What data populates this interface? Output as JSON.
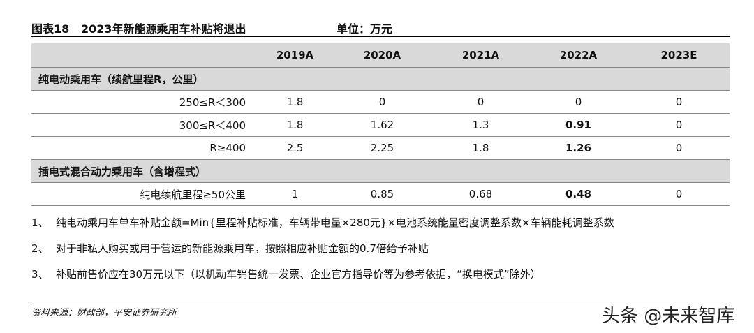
{
  "header": {
    "figure": "图表18",
    "title": "2023年新能源乘用车补贴将退出",
    "unit": "单位：万元"
  },
  "table": {
    "columns": [
      "2019A",
      "2020A",
      "2021A",
      "2022A",
      "2023E"
    ],
    "sections": [
      {
        "title": "纯电动乘用车（续航里程R，公里）",
        "rows": [
          {
            "label": "250≤R＜300",
            "values": [
              "1.8",
              "0",
              "0",
              "0",
              "0"
            ]
          },
          {
            "label": "300≤R＜400",
            "values": [
              "1.8",
              "1.62",
              "1.3",
              "0.91",
              "0"
            ]
          },
          {
            "label": "R≥400",
            "values": [
              "2.5",
              "2.25",
              "1.8",
              "1.26",
              "0"
            ]
          }
        ]
      },
      {
        "title": "插电式混合动力乘用车（含增程式）",
        "rows": [
          {
            "label": "纯电续航里程≥50公里",
            "values": [
              "1",
              "0.85",
              "0.68",
              "0.48",
              "0"
            ]
          }
        ]
      }
    ]
  },
  "notes": [
    {
      "num": "1、",
      "text": "纯电动乘用车单车补贴金额=Min{里程补贴标准，车辆带电量×280元}×电池系统能量密度调整系数×车辆能耗调整系数"
    },
    {
      "num": "2、",
      "text": "对于非私人购买或用于营运的新能源乘用车，按照相应补贴金额的0.7倍给予补贴"
    },
    {
      "num": "3、",
      "text": "补贴前售价应在30万元以下（以机动车销售统一发票、企业官方指导价等为参考依据，“换电模式”除外）"
    }
  ],
  "source": "资料来源：财政部，平安证券研究所",
  "watermark": "头条 @未来智库"
}
